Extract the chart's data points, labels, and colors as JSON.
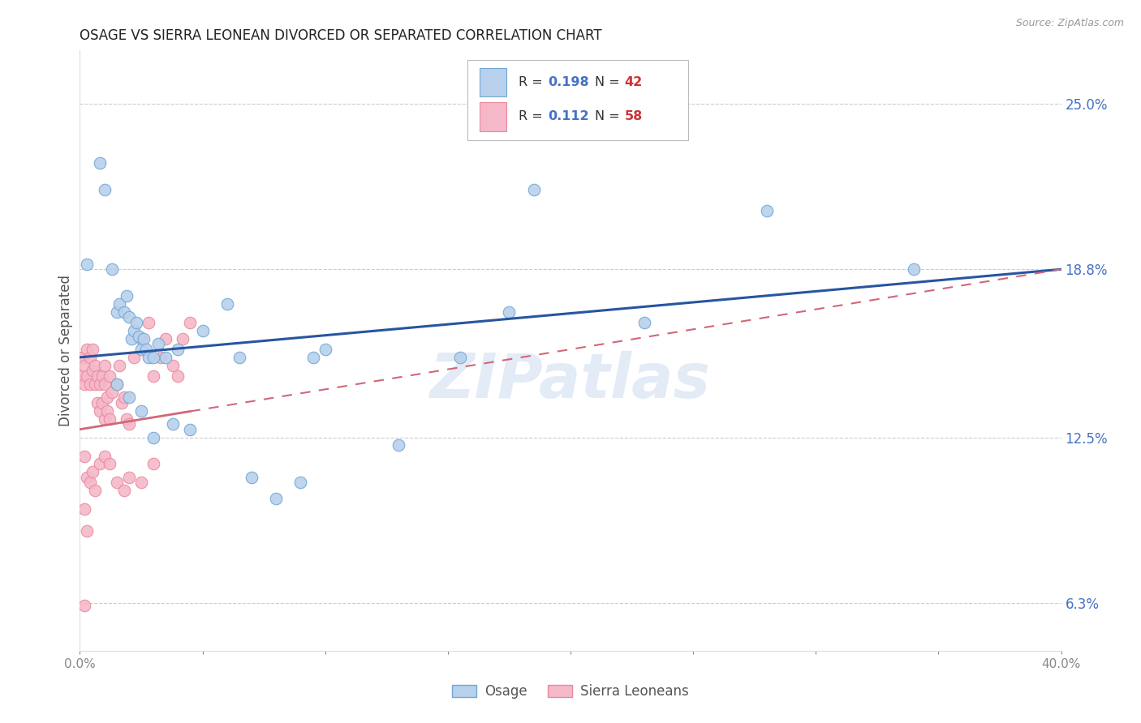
{
  "title": "OSAGE VS SIERRA LEONEAN DIVORCED OR SEPARATED CORRELATION CHART",
  "source": "Source: ZipAtlas.com",
  "ylabel": "Divorced or Separated",
  "xlim": [
    0.0,
    0.4
  ],
  "ylim": [
    0.045,
    0.27
  ],
  "xticks": [
    0.0,
    0.05,
    0.1,
    0.15,
    0.2,
    0.25,
    0.3,
    0.35,
    0.4
  ],
  "xtick_labels": [
    "0.0%",
    "",
    "",
    "",
    "",
    "",
    "",
    "",
    "40.0%"
  ],
  "ytick_labels_right": [
    "25.0%",
    "18.8%",
    "12.5%",
    "6.3%"
  ],
  "ytick_vals_right": [
    0.25,
    0.188,
    0.125,
    0.063
  ],
  "legend_R1": "0.198",
  "legend_N1": "42",
  "legend_R2": "0.112",
  "legend_N2": "58",
  "osage_color": "#b8d0eb",
  "sierra_color": "#f5b8c8",
  "osage_edge": "#6fa8d6",
  "sierra_edge": "#e88aa0",
  "line_blue": "#2855a0",
  "line_pink": "#d06878",
  "background": "#ffffff",
  "grid_color": "#cccccc",
  "axis_label_color": "#4472c4",
  "red_label_color": "#cc3333",
  "watermark_color": "#d0dff0",
  "watermark": "ZIPatlas",
  "osage_x": [
    0.003,
    0.008,
    0.01,
    0.013,
    0.015,
    0.016,
    0.018,
    0.019,
    0.02,
    0.021,
    0.022,
    0.023,
    0.024,
    0.025,
    0.026,
    0.027,
    0.028,
    0.03,
    0.032,
    0.035,
    0.038,
    0.04,
    0.045,
    0.05,
    0.06,
    0.065,
    0.07,
    0.08,
    0.09,
    0.095,
    0.1,
    0.13,
    0.155,
    0.175,
    0.23,
    0.28,
    0.34,
    0.015,
    0.02,
    0.025,
    0.03,
    0.185
  ],
  "osage_y": [
    0.19,
    0.228,
    0.218,
    0.188,
    0.172,
    0.175,
    0.172,
    0.178,
    0.17,
    0.162,
    0.165,
    0.168,
    0.163,
    0.158,
    0.162,
    0.158,
    0.155,
    0.155,
    0.16,
    0.155,
    0.13,
    0.158,
    0.128,
    0.165,
    0.175,
    0.155,
    0.11,
    0.102,
    0.108,
    0.155,
    0.158,
    0.122,
    0.155,
    0.172,
    0.168,
    0.21,
    0.188,
    0.145,
    0.14,
    0.135,
    0.125,
    0.218
  ],
  "sierra_x": [
    0.001,
    0.001,
    0.002,
    0.002,
    0.003,
    0.003,
    0.004,
    0.004,
    0.005,
    0.005,
    0.006,
    0.006,
    0.007,
    0.007,
    0.008,
    0.008,
    0.009,
    0.009,
    0.01,
    0.01,
    0.01,
    0.011,
    0.011,
    0.012,
    0.012,
    0.013,
    0.015,
    0.016,
    0.017,
    0.018,
    0.019,
    0.02,
    0.022,
    0.025,
    0.028,
    0.03,
    0.033,
    0.035,
    0.038,
    0.04,
    0.042,
    0.045,
    0.002,
    0.003,
    0.004,
    0.005,
    0.006,
    0.008,
    0.01,
    0.012,
    0.015,
    0.018,
    0.02,
    0.025,
    0.03,
    0.002,
    0.003,
    0.002
  ],
  "sierra_y": [
    0.148,
    0.155,
    0.152,
    0.145,
    0.158,
    0.148,
    0.155,
    0.145,
    0.158,
    0.15,
    0.152,
    0.145,
    0.148,
    0.138,
    0.145,
    0.135,
    0.148,
    0.138,
    0.145,
    0.132,
    0.152,
    0.135,
    0.14,
    0.148,
    0.132,
    0.142,
    0.145,
    0.152,
    0.138,
    0.14,
    0.132,
    0.13,
    0.155,
    0.162,
    0.168,
    0.148,
    0.155,
    0.162,
    0.152,
    0.148,
    0.162,
    0.168,
    0.118,
    0.11,
    0.108,
    0.112,
    0.105,
    0.115,
    0.118,
    0.115,
    0.108,
    0.105,
    0.11,
    0.108,
    0.115,
    0.098,
    0.09,
    0.062
  ]
}
